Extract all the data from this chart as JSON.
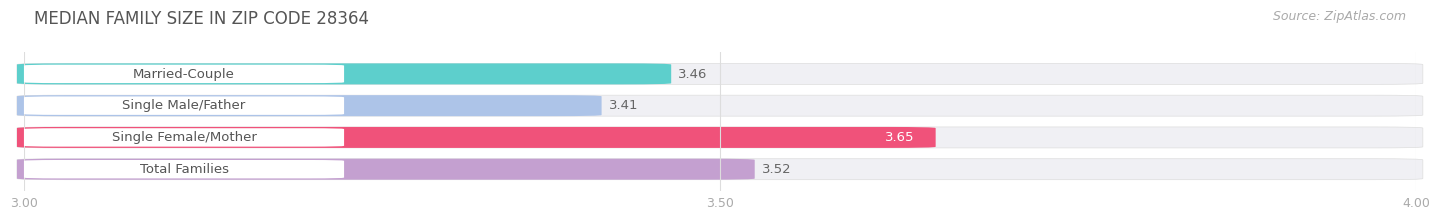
{
  "title": "MEDIAN FAMILY SIZE IN ZIP CODE 28364",
  "source": "Source: ZipAtlas.com",
  "categories": [
    "Married-Couple",
    "Single Male/Father",
    "Single Female/Mother",
    "Total Families"
  ],
  "values": [
    3.46,
    3.41,
    3.65,
    3.52
  ],
  "bar_colors": [
    "#5dcfcc",
    "#adc4e8",
    "#f0527a",
    "#c4a0d0"
  ],
  "value_labels": [
    "3.46",
    "3.41",
    "3.65",
    "3.52"
  ],
  "xlim": [
    3.0,
    4.0
  ],
  "xticks": [
    3.0,
    3.5,
    4.0
  ],
  "xtick_labels": [
    "3.00",
    "3.50",
    "4.00"
  ],
  "background_color": "#ffffff",
  "pill_bg_color": "#f0f0f4",
  "title_fontsize": 12,
  "source_fontsize": 9,
  "label_fontsize": 9.5,
  "value_fontsize": 9.5,
  "bar_height": 0.65,
  "title_color": "#555555",
  "label_color": "#555555",
  "value_color_inside": "#ffffff",
  "value_color_outside": "#666666",
  "tick_color": "#aaaaaa",
  "grid_color": "#dddddd"
}
